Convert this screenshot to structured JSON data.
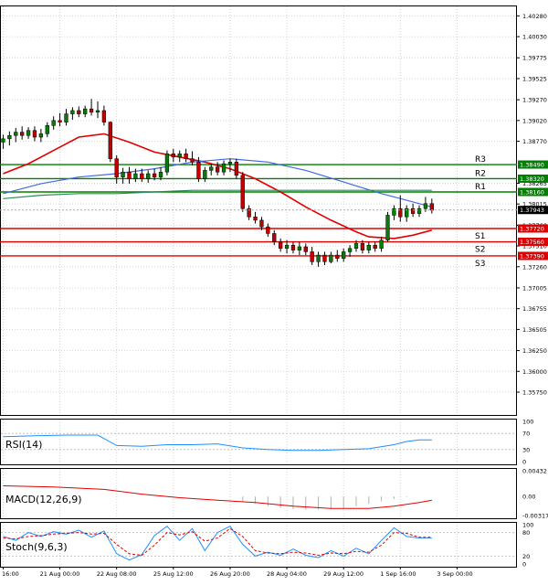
{
  "chart_data": {
    "type": "candlestick",
    "price_axis": {
      "ylim": [
        1.35475,
        1.40405
      ],
      "ticks": [
        "1.40280",
        "1.40030",
        "1.39775",
        "1.39525",
        "1.39270",
        "1.39020",
        "1.38770",
        "1.38265",
        "1.38015",
        "1.37760",
        "1.37510",
        "1.37260",
        "1.37005",
        "1.36755",
        "1.36505",
        "1.36250",
        "1.36000",
        "1.35750"
      ],
      "grid": true
    },
    "levels": [
      {
        "label": "R3",
        "price": 1.3849,
        "tag": "1.38490",
        "color": "#008000"
      },
      {
        "label": "R2",
        "price": 1.3832,
        "tag": "1.38320",
        "color": "#008000"
      },
      {
        "label": "R1",
        "price": 1.3816,
        "tag": "1.38160",
        "color": "#008000"
      },
      {
        "label": "S1",
        "price": 1.3772,
        "tag": "1.37720",
        "color": "#e00000"
      },
      {
        "label": "S2",
        "price": 1.3756,
        "tag": "1.37560",
        "color": "#e00000"
      },
      {
        "label": "S3",
        "price": 1.3739,
        "tag": "1.37390",
        "color": "#e00000"
      }
    ],
    "current_price": {
      "price": 1.37943,
      "tag": "1.37943"
    },
    "x_labels": [
      "16:00",
      "21 Aug 00:00",
      "22 Aug 08:00",
      "25 Aug 12:00",
      "26 Aug 20:00",
      "28 Aug 04:00",
      "29 Aug 12:00",
      "1 Sep 16:00",
      "3 Sep 00:00"
    ],
    "x_label_index": [
      0,
      9,
      18,
      27,
      36,
      45,
      54,
      63,
      72
    ],
    "bar_count": 82,
    "candles": [
      [
        1.3876,
        1.3885,
        1.3868,
        1.388
      ],
      [
        1.388,
        1.3889,
        1.3872,
        1.3884
      ],
      [
        1.3884,
        1.3893,
        1.3876,
        1.3888
      ],
      [
        1.3888,
        1.3895,
        1.3879,
        1.3884
      ],
      [
        1.3884,
        1.3894,
        1.388,
        1.389
      ],
      [
        1.389,
        1.3895,
        1.3877,
        1.3882
      ],
      [
        1.3882,
        1.3892,
        1.3876,
        1.3886
      ],
      [
        1.3886,
        1.39,
        1.3882,
        1.3896
      ],
      [
        1.3896,
        1.3907,
        1.3891,
        1.3902
      ],
      [
        1.3902,
        1.3911,
        1.3895,
        1.39
      ],
      [
        1.39,
        1.3916,
        1.3896,
        1.391
      ],
      [
        1.391,
        1.3918,
        1.3903,
        1.3914
      ],
      [
        1.3914,
        1.3919,
        1.3906,
        1.391
      ],
      [
        1.391,
        1.392,
        1.3906,
        1.3916
      ],
      [
        1.3916,
        1.3928,
        1.3908,
        1.3912
      ],
      [
        1.3912,
        1.3925,
        1.3905,
        1.3914
      ],
      [
        1.3914,
        1.392,
        1.3896,
        1.39
      ],
      [
        1.39,
        1.3901,
        1.3852,
        1.3856
      ],
      [
        1.3856,
        1.386,
        1.3826,
        1.3834
      ],
      [
        1.3834,
        1.3845,
        1.3826,
        1.384
      ],
      [
        1.384,
        1.3846,
        1.3826,
        1.3832
      ],
      [
        1.3832,
        1.3844,
        1.3828,
        1.3838
      ],
      [
        1.3838,
        1.3844,
        1.3828,
        1.3832
      ],
      [
        1.3832,
        1.3842,
        1.3827,
        1.3838
      ],
      [
        1.3838,
        1.3844,
        1.383,
        1.3834
      ],
      [
        1.3834,
        1.3846,
        1.383,
        1.384
      ],
      [
        1.384,
        1.3866,
        1.3836,
        1.3862
      ],
      [
        1.3862,
        1.3868,
        1.3852,
        1.3858
      ],
      [
        1.3858,
        1.3866,
        1.3852,
        1.3862
      ],
      [
        1.3862,
        1.3868,
        1.3852,
        1.3856
      ],
      [
        1.3856,
        1.3865,
        1.3848,
        1.3852
      ],
      [
        1.3852,
        1.3858,
        1.3828,
        1.3832
      ],
      [
        1.3832,
        1.3846,
        1.3828,
        1.3842
      ],
      [
        1.3842,
        1.385,
        1.3836,
        1.3846
      ],
      [
        1.3846,
        1.3852,
        1.3836,
        1.384
      ],
      [
        1.384,
        1.3854,
        1.3836,
        1.385
      ],
      [
        1.385,
        1.3856,
        1.384,
        1.3852
      ],
      [
        1.3852,
        1.3856,
        1.3832,
        1.3836
      ],
      [
        1.3836,
        1.384,
        1.3792,
        1.3796
      ],
      [
        1.3796,
        1.38,
        1.3782,
        1.3786
      ],
      [
        1.3786,
        1.3792,
        1.3778,
        1.3782
      ],
      [
        1.3782,
        1.3786,
        1.377,
        1.3774
      ],
      [
        1.3774,
        1.3778,
        1.3762,
        1.3766
      ],
      [
        1.3766,
        1.377,
        1.3752,
        1.3756
      ],
      [
        1.3756,
        1.376,
        1.3744,
        1.3748
      ],
      [
        1.3748,
        1.3758,
        1.3742,
        1.3752
      ],
      [
        1.3752,
        1.3756,
        1.3742,
        1.3746
      ],
      [
        1.3746,
        1.3756,
        1.374,
        1.375
      ],
      [
        1.375,
        1.3754,
        1.374,
        1.3744
      ],
      [
        1.3744,
        1.375,
        1.3728,
        1.3732
      ],
      [
        1.3732,
        1.3744,
        1.3726,
        1.374
      ],
      [
        1.374,
        1.3744,
        1.3728,
        1.3732
      ],
      [
        1.3732,
        1.3744,
        1.373,
        1.374
      ],
      [
        1.374,
        1.3746,
        1.3732,
        1.3736
      ],
      [
        1.3736,
        1.3748,
        1.3732,
        1.3744
      ],
      [
        1.3744,
        1.3752,
        1.3738,
        1.3748
      ],
      [
        1.3748,
        1.3758,
        1.3744,
        1.3754
      ],
      [
        1.3754,
        1.3758,
        1.3742,
        1.3746
      ],
      [
        1.3746,
        1.3756,
        1.3742,
        1.3752
      ],
      [
        1.3752,
        1.3756,
        1.3744,
        1.3748
      ],
      [
        1.3748,
        1.3762,
        1.3744,
        1.3758
      ],
      [
        1.3758,
        1.3792,
        1.3756,
        1.3788
      ],
      [
        1.3788,
        1.38,
        1.3782,
        1.3796
      ],
      [
        1.3796,
        1.3812,
        1.378,
        1.3786
      ],
      [
        1.3786,
        1.38,
        1.378,
        1.3796
      ],
      [
        1.3796,
        1.3802,
        1.3786,
        1.379
      ],
      [
        1.379,
        1.38,
        1.3786,
        1.3796
      ],
      [
        1.3796,
        1.381,
        1.3792,
        1.3802
      ],
      [
        1.3802,
        1.3808,
        1.379,
        1.3794
      ]
    ],
    "indicators": [
      {
        "name": "MA-red",
        "color": "#e00000",
        "points": [
          [
            0,
            1.3838
          ],
          [
            4,
            1.385
          ],
          [
            8,
            1.3866
          ],
          [
            12,
            1.3882
          ],
          [
            16,
            1.3886
          ],
          [
            20,
            1.3876
          ],
          [
            24,
            1.3864
          ],
          [
            28,
            1.3858
          ],
          [
            32,
            1.3852
          ],
          [
            36,
            1.3844
          ],
          [
            40,
            1.3832
          ],
          [
            44,
            1.3816
          ],
          [
            48,
            1.3798
          ],
          [
            52,
            1.3782
          ],
          [
            56,
            1.3768
          ],
          [
            58,
            1.3762
          ],
          [
            62,
            1.376
          ],
          [
            65,
            1.3764
          ],
          [
            68,
            1.377
          ]
        ]
      },
      {
        "name": "MA-blue",
        "color": "#4169e1",
        "points": [
          [
            0,
            1.3814
          ],
          [
            6,
            1.3826
          ],
          [
            12,
            1.3834
          ],
          [
            18,
            1.3838
          ],
          [
            24,
            1.3844
          ],
          [
            30,
            1.3852
          ],
          [
            36,
            1.3856
          ],
          [
            42,
            1.3852
          ],
          [
            48,
            1.3842
          ],
          [
            54,
            1.3828
          ],
          [
            60,
            1.3814
          ],
          [
            64,
            1.3806
          ],
          [
            68,
            1.3798
          ]
        ]
      },
      {
        "name": "MA-green",
        "color": "#2e8b57",
        "points": [
          [
            0,
            1.3808
          ],
          [
            6,
            1.3812
          ],
          [
            12,
            1.3814
          ],
          [
            18,
            1.3814
          ],
          [
            24,
            1.3816
          ],
          [
            30,
            1.3818
          ],
          [
            36,
            1.3818
          ],
          [
            42,
            1.3818
          ],
          [
            48,
            1.3818
          ],
          [
            54,
            1.3818
          ],
          [
            60,
            1.3818
          ],
          [
            66,
            1.3818
          ],
          [
            68,
            1.3818
          ]
        ]
      }
    ],
    "rsi": {
      "label": "RSI(14)",
      "ticks": [
        "100",
        "70",
        "30",
        "0"
      ],
      "levels": [
        70,
        30
      ],
      "range": [
        0,
        100
      ],
      "color": "#1e90ff",
      "values": [
        [
          0,
          62
        ],
        [
          5,
          64
        ],
        [
          10,
          66
        ],
        [
          15,
          66
        ],
        [
          18,
          40
        ],
        [
          22,
          38
        ],
        [
          26,
          42
        ],
        [
          30,
          42
        ],
        [
          34,
          44
        ],
        [
          38,
          34
        ],
        [
          42,
          30
        ],
        [
          46,
          28
        ],
        [
          50,
          28
        ],
        [
          54,
          30
        ],
        [
          58,
          32
        ],
        [
          62,
          42
        ],
        [
          64,
          50
        ],
        [
          66,
          54
        ],
        [
          68,
          54
        ]
      ]
    },
    "macd": {
      "label": "MACD(12,26,9)",
      "ticks": [
        "0.00432",
        "0.00",
        "-0.003178"
      ],
      "range": [
        -0.003178,
        0.00432
      ],
      "signal_color": "#e00000",
      "hist_color": "#b0b0b0",
      "hist": [
        [
          38,
          -0.0008
        ],
        [
          40,
          -0.0012
        ],
        [
          42,
          -0.0016
        ],
        [
          44,
          -0.0019
        ],
        [
          46,
          -0.0021
        ],
        [
          48,
          -0.0022
        ],
        [
          50,
          -0.0022
        ],
        [
          52,
          -0.0021
        ],
        [
          54,
          -0.0019
        ],
        [
          56,
          -0.0016
        ],
        [
          58,
          -0.0012
        ],
        [
          60,
          -0.0008
        ],
        [
          62,
          -0.0004
        ],
        [
          64,
          -0.0001
        ]
      ],
      "signal": [
        [
          0,
          0.0018
        ],
        [
          8,
          0.0016
        ],
        [
          16,
          0.0012
        ],
        [
          22,
          0.0004
        ],
        [
          28,
          -0.0002
        ],
        [
          34,
          -0.0006
        ],
        [
          40,
          -0.001
        ],
        [
          46,
          -0.0016
        ],
        [
          52,
          -0.002
        ],
        [
          58,
          -0.002
        ],
        [
          62,
          -0.0016
        ],
        [
          66,
          -0.001
        ],
        [
          68,
          -0.0006
        ]
      ]
    },
    "stoch": {
      "label": "Stoch(9,6,3)",
      "ticks": [
        "100",
        "80",
        "20",
        "0"
      ],
      "levels": [
        80,
        20
      ],
      "range": [
        0,
        100
      ],
      "main_color": "#1e90ff",
      "signal_color": "#e00000",
      "main": [
        [
          0,
          70
        ],
        [
          2,
          60
        ],
        [
          4,
          80
        ],
        [
          6,
          70
        ],
        [
          8,
          82
        ],
        [
          10,
          76
        ],
        [
          12,
          86
        ],
        [
          14,
          68
        ],
        [
          16,
          84
        ],
        [
          18,
          26
        ],
        [
          20,
          10
        ],
        [
          22,
          24
        ],
        [
          24,
          72
        ],
        [
          26,
          96
        ],
        [
          28,
          60
        ],
        [
          30,
          90
        ],
        [
          32,
          34
        ],
        [
          34,
          80
        ],
        [
          36,
          96
        ],
        [
          38,
          50
        ],
        [
          40,
          20
        ],
        [
          42,
          30
        ],
        [
          44,
          22
        ],
        [
          46,
          38
        ],
        [
          48,
          22
        ],
        [
          50,
          16
        ],
        [
          52,
          34
        ],
        [
          54,
          20
        ],
        [
          56,
          40
        ],
        [
          58,
          26
        ],
        [
          60,
          60
        ],
        [
          62,
          92
        ],
        [
          64,
          70
        ],
        [
          66,
          66
        ],
        [
          68,
          66
        ]
      ],
      "signal": [
        [
          0,
          66
        ],
        [
          2,
          64
        ],
        [
          4,
          70
        ],
        [
          6,
          72
        ],
        [
          8,
          76
        ],
        [
          10,
          78
        ],
        [
          12,
          80
        ],
        [
          14,
          76
        ],
        [
          16,
          78
        ],
        [
          18,
          50
        ],
        [
          20,
          26
        ],
        [
          22,
          22
        ],
        [
          24,
          48
        ],
        [
          26,
          80
        ],
        [
          28,
          74
        ],
        [
          30,
          82
        ],
        [
          32,
          58
        ],
        [
          34,
          66
        ],
        [
          36,
          90
        ],
        [
          38,
          70
        ],
        [
          40,
          34
        ],
        [
          42,
          28
        ],
        [
          44,
          26
        ],
        [
          46,
          30
        ],
        [
          48,
          28
        ],
        [
          50,
          22
        ],
        [
          52,
          28
        ],
        [
          54,
          26
        ],
        [
          56,
          32
        ],
        [
          58,
          30
        ],
        [
          60,
          48
        ],
        [
          62,
          80
        ],
        [
          64,
          78
        ],
        [
          66,
          68
        ],
        [
          68,
          68
        ]
      ]
    }
  }
}
